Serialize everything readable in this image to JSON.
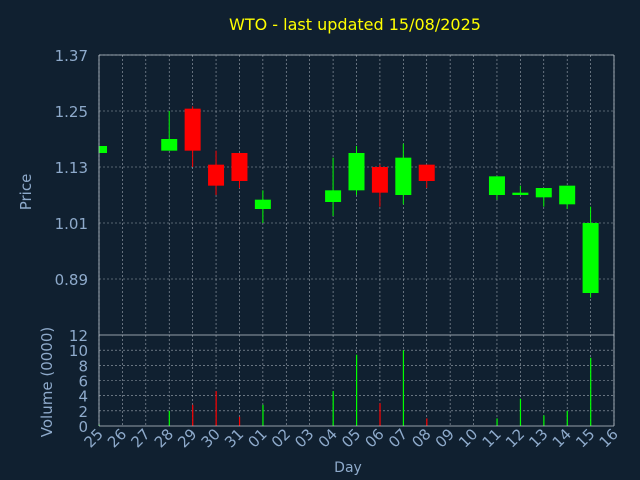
{
  "title": "WTO - last updated 15/08/2025",
  "colors": {
    "background": "#102030",
    "title": "#ffff00",
    "axis_text": "#8eaacb",
    "grid": "#c0c8d0",
    "up": "#00ff00",
    "down": "#ff0000"
  },
  "chart_data": [
    {
      "type": "candlestick",
      "ylabel": "Price",
      "ylim": [
        0.77,
        1.37
      ],
      "yticks": [
        "1.37",
        "1.25",
        "1.13",
        "1.01",
        "0.89"
      ],
      "grid": true,
      "categories": [
        "25",
        "26",
        "27",
        "28",
        "29",
        "30",
        "31",
        "01",
        "02",
        "03",
        "04",
        "05",
        "06",
        "07",
        "08",
        "09",
        "10",
        "11",
        "12",
        "13",
        "14",
        "15",
        "16"
      ],
      "candles": [
        {
          "day": "25",
          "open": 1.16,
          "high": 1.175,
          "low": 1.16,
          "close": 1.175
        },
        {
          "day": "28",
          "open": 1.165,
          "high": 1.25,
          "low": 1.165,
          "close": 1.19
        },
        {
          "day": "29",
          "open": 1.255,
          "high": 1.26,
          "low": 1.13,
          "close": 1.165
        },
        {
          "day": "30",
          "open": 1.135,
          "high": 1.165,
          "low": 1.07,
          "close": 1.09
        },
        {
          "day": "31",
          "open": 1.16,
          "high": 1.16,
          "low": 1.085,
          "close": 1.1
        },
        {
          "day": "01",
          "open": 1.04,
          "high": 1.08,
          "low": 1.01,
          "close": 1.06
        },
        {
          "day": "04",
          "open": 1.055,
          "high": 1.15,
          "low": 1.025,
          "close": 1.08
        },
        {
          "day": "05",
          "open": 1.08,
          "high": 1.175,
          "low": 1.07,
          "close": 1.16
        },
        {
          "day": "06",
          "open": 1.13,
          "high": 1.135,
          "low": 1.045,
          "close": 1.075
        },
        {
          "day": "07",
          "open": 1.07,
          "high": 1.18,
          "low": 1.05,
          "close": 1.15
        },
        {
          "day": "08",
          "open": 1.135,
          "high": 1.135,
          "low": 1.085,
          "close": 1.1
        },
        {
          "day": "11",
          "open": 1.07,
          "high": 1.11,
          "low": 1.06,
          "close": 1.11
        },
        {
          "day": "12",
          "open": 1.07,
          "high": 1.09,
          "low": 1.07,
          "close": 1.075
        },
        {
          "day": "13",
          "open": 1.065,
          "high": 1.085,
          "low": 1.045,
          "close": 1.085
        },
        {
          "day": "14",
          "open": 1.05,
          "high": 1.09,
          "low": 1.04,
          "close": 1.09
        },
        {
          "day": "15",
          "open": 0.86,
          "high": 1.045,
          "low": 0.85,
          "close": 1.01
        }
      ]
    },
    {
      "type": "bar",
      "ylabel": "Volume (0000)",
      "xlabel": "Day",
      "ylim": [
        0,
        12
      ],
      "yticks": [
        "12",
        "10",
        "8",
        "6",
        "4",
        "2",
        "0"
      ],
      "grid": true,
      "categories": [
        "25",
        "26",
        "27",
        "28",
        "29",
        "30",
        "31",
        "01",
        "02",
        "03",
        "04",
        "05",
        "06",
        "07",
        "08",
        "09",
        "10",
        "11",
        "12",
        "13",
        "14",
        "15",
        "16"
      ],
      "volumes": [
        {
          "day": "25",
          "value": 0.2,
          "dir": "up"
        },
        {
          "day": "28",
          "value": 2.0,
          "dir": "up"
        },
        {
          "day": "29",
          "value": 2.8,
          "dir": "down"
        },
        {
          "day": "30",
          "value": 4.6,
          "dir": "down"
        },
        {
          "day": "31",
          "value": 1.2,
          "dir": "down"
        },
        {
          "day": "01",
          "value": 2.8,
          "dir": "up"
        },
        {
          "day": "04",
          "value": 4.6,
          "dir": "up"
        },
        {
          "day": "05",
          "value": 9.4,
          "dir": "up"
        },
        {
          "day": "06",
          "value": 3.0,
          "dir": "down"
        },
        {
          "day": "07",
          "value": 10.0,
          "dir": "up"
        },
        {
          "day": "08",
          "value": 1.0,
          "dir": "down"
        },
        {
          "day": "11",
          "value": 1.0,
          "dir": "up"
        },
        {
          "day": "12",
          "value": 3.6,
          "dir": "up"
        },
        {
          "day": "13",
          "value": 1.4,
          "dir": "up"
        },
        {
          "day": "14",
          "value": 2.0,
          "dir": "up"
        },
        {
          "day": "15",
          "value": 9.0,
          "dir": "up"
        }
      ]
    }
  ]
}
